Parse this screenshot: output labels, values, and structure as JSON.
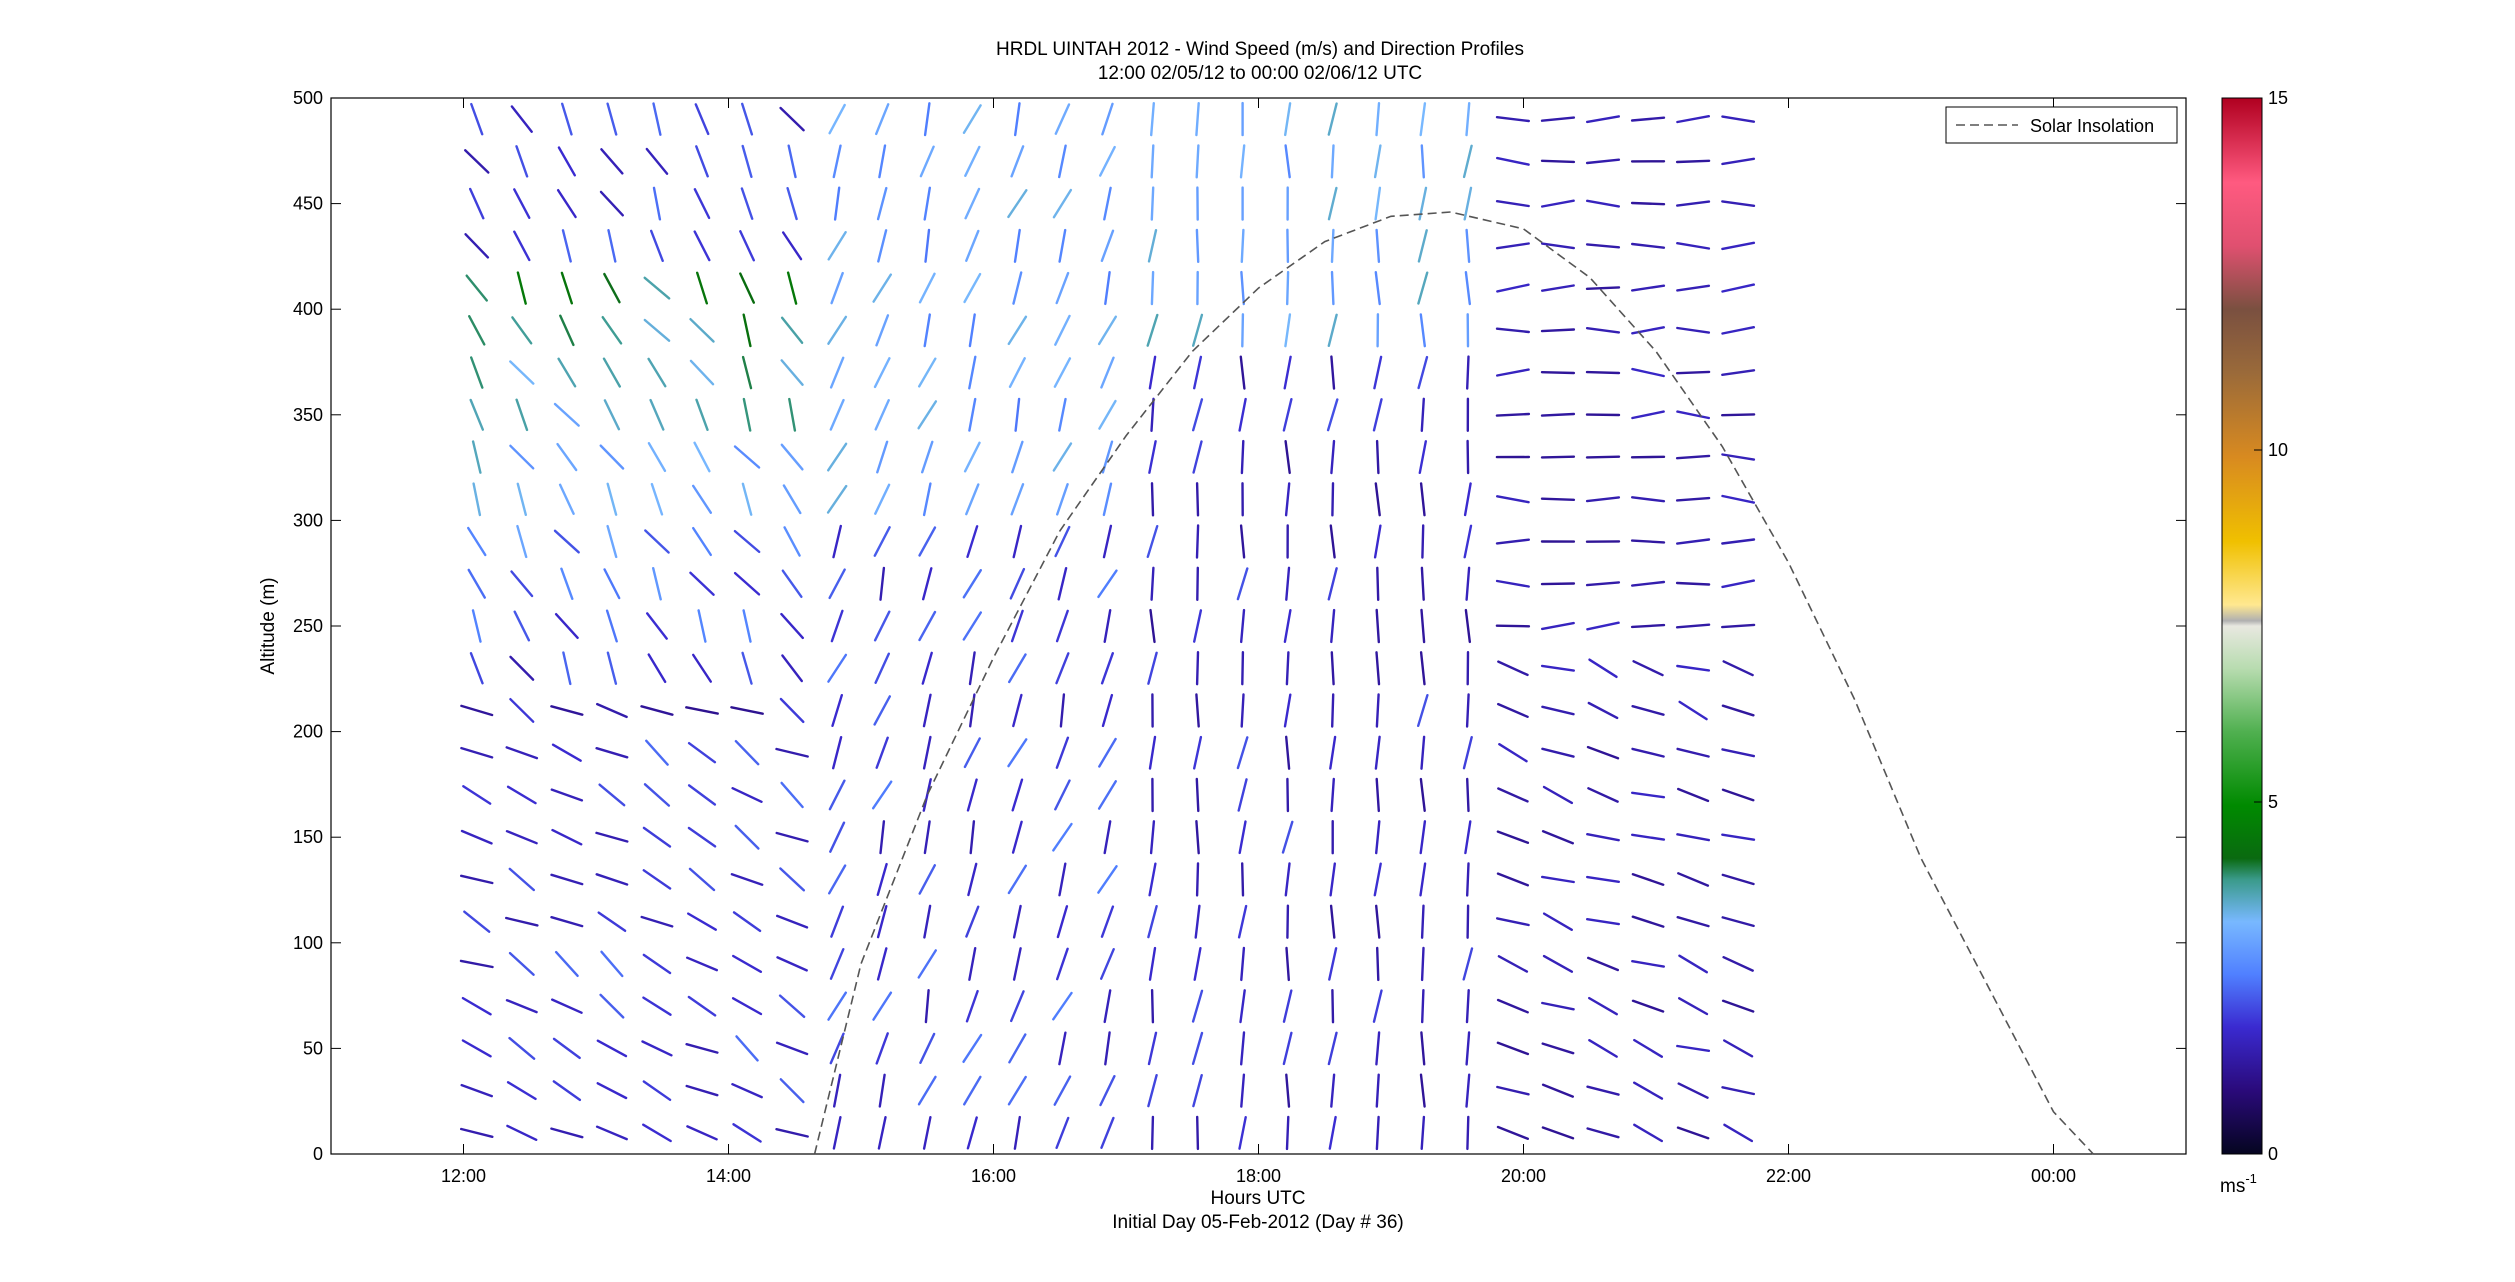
{
  "figure": {
    "title_line1": "HRDL UINTAH 2012 - Wind Speed (m/s) and Direction Profiles",
    "title_line2": "12:00 02/05/12 to 00:00 02/06/12  UTC",
    "xlabel": "Hours UTC",
    "xlabel2": "Initial Day 05-Feb-2012 (Day # 36)",
    "ylabel": "Altitude (m)"
  },
  "chart_data": {
    "type": "quiver",
    "title": "HRDL UINTAH 2012 - Wind Speed (m/s) and Direction Profiles",
    "subtitle": "12:00 02/05/12 to 00:00 02/06/12  UTC",
    "xlabel": "Hours UTC",
    "ylabel": "Altitude (m)",
    "xlim": [
      11.0,
      25.0
    ],
    "ylim": [
      0,
      500
    ],
    "x_ticks": [
      12,
      14,
      16,
      18,
      20,
      22,
      24
    ],
    "x_tick_labels": [
      "12:00",
      "14:00",
      "16:00",
      "18:00",
      "20:00",
      "22:00",
      "00:00"
    ],
    "y_ticks": [
      0,
      50,
      100,
      150,
      200,
      250,
      300,
      350,
      400,
      450,
      500
    ],
    "y_tick_labels": [
      "0",
      "50",
      "100",
      "150",
      "200",
      "250",
      "300",
      "350",
      "400",
      "450",
      "500"
    ],
    "profile_times_start": 12.1,
    "profile_times_step": 0.34,
    "profile_count": 29,
    "altitude_start": 10,
    "altitude_step": 20,
    "altitude_count": 25,
    "legend": {
      "entries": [
        "Solar Insolation"
      ],
      "location": "top-right"
    },
    "solar_insolation": {
      "name": "Solar Insolation",
      "style": "dashed",
      "color": "#555555",
      "x": [
        14.65,
        15.0,
        15.5,
        16.0,
        16.5,
        17.0,
        17.5,
        18.0,
        18.5,
        19.0,
        19.45,
        20.0,
        20.5,
        21.0,
        21.5,
        22.0,
        22.5,
        23.0,
        23.5,
        24.0,
        24.3
      ],
      "y": [
        0,
        90,
        170,
        235,
        295,
        340,
        380,
        410,
        432,
        444,
        446,
        438,
        415,
        380,
        335,
        280,
        215,
        140,
        80,
        20,
        0
      ]
    },
    "colorbar": {
      "min": 0,
      "max": 15,
      "ticks": [
        0,
        5,
        10,
        15
      ],
      "tick_labels": [
        "0",
        "5",
        "10",
        "15"
      ],
      "unit": "ms",
      "unit_exponent": "-1"
    }
  }
}
